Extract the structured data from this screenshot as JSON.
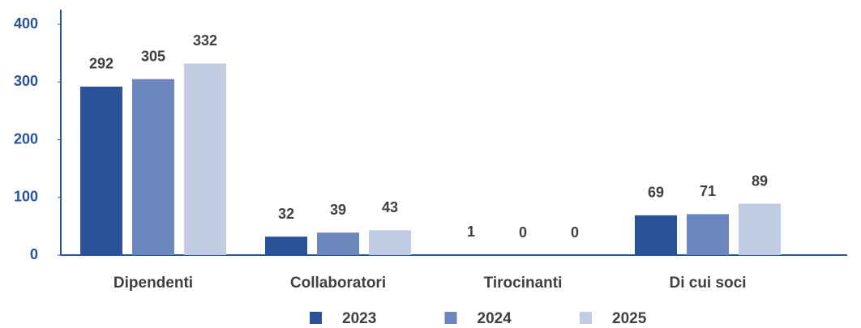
{
  "chart_data": {
    "type": "bar",
    "categories": [
      "Dipendenti",
      "Collaboratori",
      "Tirocinanti",
      "Di cui soci"
    ],
    "series": [
      {
        "name": "2023",
        "color": "#2a5298",
        "values": [
          292,
          32,
          1,
          69
        ]
      },
      {
        "name": "2024",
        "color": "#6b86bd",
        "values": [
          305,
          39,
          0,
          71
        ]
      },
      {
        "name": "2025",
        "color": "#c0cbe4",
        "values": [
          332,
          43,
          0,
          89
        ]
      }
    ],
    "ylim": [
      0,
      400
    ],
    "yticks": [
      0,
      100,
      200,
      300,
      400
    ],
    "grid": false,
    "legend": "bottom"
  }
}
